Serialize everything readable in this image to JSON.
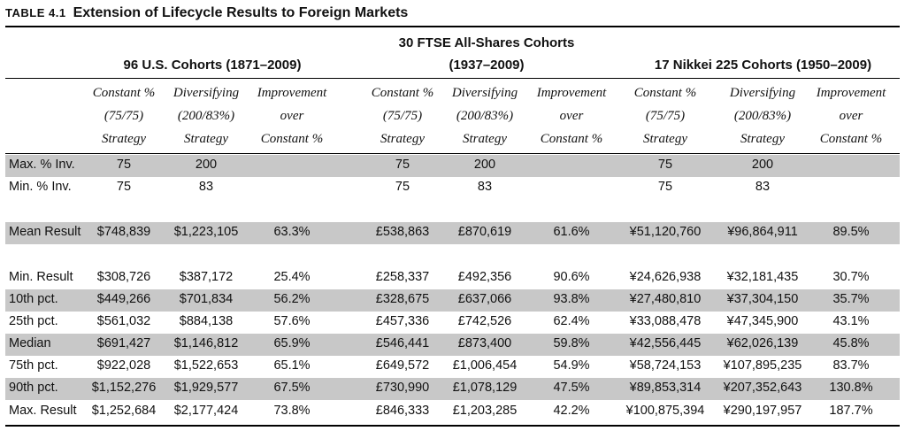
{
  "table_number": "TABLE 4.1",
  "title": "Extension of Lifecycle Results to Foreign Markets",
  "groups": [
    {
      "name": "96 U.S. Cohorts (1871–2009)"
    },
    {
      "name": "30 FTSE All-Shares Cohorts (1937–2009)"
    },
    {
      "name": "17 Nikkei 225 Cohorts (1950–2009)"
    }
  ],
  "subheaders": [
    [
      "Constant %",
      "(75/75)",
      "Strategy"
    ],
    [
      "Diversifying",
      "(200/83%)",
      "Strategy"
    ],
    [
      "Improvement",
      "over",
      "Constant %"
    ]
  ],
  "rows": [
    {
      "label": "Max. % Inv.",
      "cells": [
        "75",
        "200",
        "",
        "75",
        "200",
        "",
        "75",
        "200",
        ""
      ],
      "shaded": true
    },
    {
      "label": "Min. % Inv.",
      "cells": [
        "75",
        "83",
        "",
        "75",
        "83",
        "",
        "75",
        "83",
        ""
      ],
      "shaded": false
    },
    {
      "label": "Mean Result",
      "cells": [
        "$748,839",
        "$1,223,105",
        "63.3%",
        "£538,863",
        "£870,619",
        "61.6%",
        "¥51,120,760",
        "¥96,864,911",
        "89.5%"
      ],
      "shaded": true
    },
    {
      "label": "Min. Result",
      "cells": [
        "$308,726",
        "$387,172",
        "25.4%",
        "£258,337",
        "£492,356",
        "90.6%",
        "¥24,626,938",
        "¥32,181,435",
        "30.7%"
      ],
      "shaded": false
    },
    {
      "label": "10th pct.",
      "cells": [
        "$449,266",
        "$701,834",
        "56.2%",
        "£328,675",
        "£637,066",
        "93.8%",
        "¥27,480,810",
        "¥37,304,150",
        "35.7%"
      ],
      "shaded": true
    },
    {
      "label": "25th pct.",
      "cells": [
        "$561,032",
        "$884,138",
        "57.6%",
        "£457,336",
        "£742,526",
        "62.4%",
        "¥33,088,478",
        "¥47,345,900",
        "43.1%"
      ],
      "shaded": false
    },
    {
      "label": "Median",
      "cells": [
        "$691,427",
        "$1,146,812",
        "65.9%",
        "£546,441",
        "£873,400",
        "59.8%",
        "¥42,556,445",
        "¥62,026,139",
        "45.8%"
      ],
      "shaded": true
    },
    {
      "label": "75th pct.",
      "cells": [
        "$922,028",
        "$1,522,653",
        "65.1%",
        "£649,572",
        "£1,006,454",
        "54.9%",
        "¥58,724,153",
        "¥107,895,235",
        "83.7%"
      ],
      "shaded": false
    },
    {
      "label": "90th pct.",
      "cells": [
        "$1,152,276",
        "$1,929,577",
        "67.5%",
        "£730,990",
        "£1,078,129",
        "47.5%",
        "¥89,853,314",
        "¥207,352,643",
        "130.8%"
      ],
      "shaded": true
    },
    {
      "label": "Max. Result",
      "cells": [
        "$1,252,684",
        "$2,177,424",
        "73.8%",
        "£846,333",
        "£1,203,285",
        "42.2%",
        "¥100,875,394",
        "¥290,197,957",
        "187.7%"
      ],
      "shaded": false
    }
  ]
}
